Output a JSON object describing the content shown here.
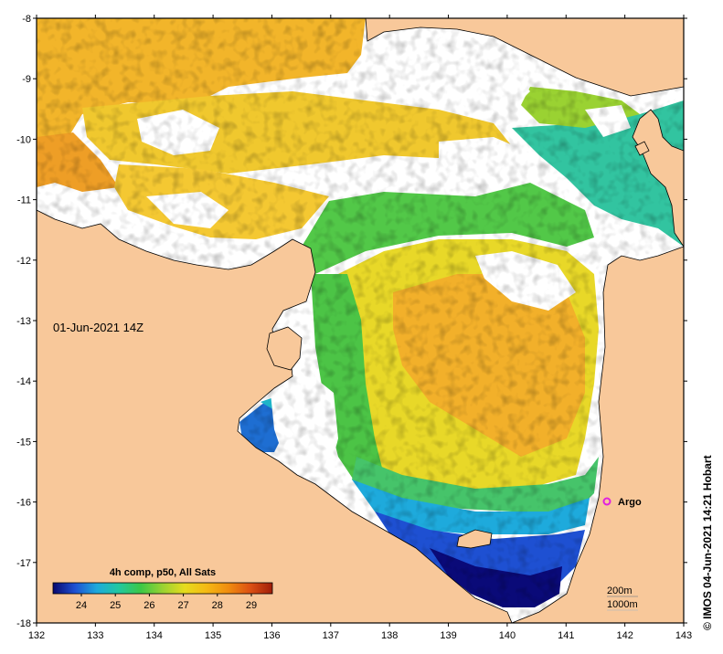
{
  "map": {
    "timestamp_label": "01-Jun-2021 14Z",
    "credit": "© IMOS 04-Jun-2021 14:21 Hobart",
    "marker_label": "Argo",
    "legend": {
      "title": "4h comp, p50, All Sats",
      "ticks": [
        "24",
        "25",
        "26",
        "27",
        "28",
        "29"
      ],
      "colors": [
        "#08086e",
        "#1e50d2",
        "#1eaadc",
        "#22c8a0",
        "#3cc846",
        "#9ad232",
        "#e6dc1e",
        "#f5b914",
        "#f08c0f",
        "#dc5014",
        "#a01e0a"
      ]
    },
    "scale_labels": [
      "200m",
      "1000m"
    ],
    "lon_ticks": [
      "132",
      "133",
      "134",
      "135",
      "136",
      "137",
      "138",
      "139",
      "140",
      "141",
      "142",
      "143"
    ],
    "lat_ticks": [
      "-8",
      "-9",
      "-10",
      "-11",
      "-12",
      "-13",
      "-14",
      "-15",
      "-16",
      "-17",
      "-18"
    ],
    "colors": {
      "land": "#f8c89a",
      "no_data": "#ffffff",
      "frame": "#000000",
      "marker": "#e020e0"
    }
  }
}
